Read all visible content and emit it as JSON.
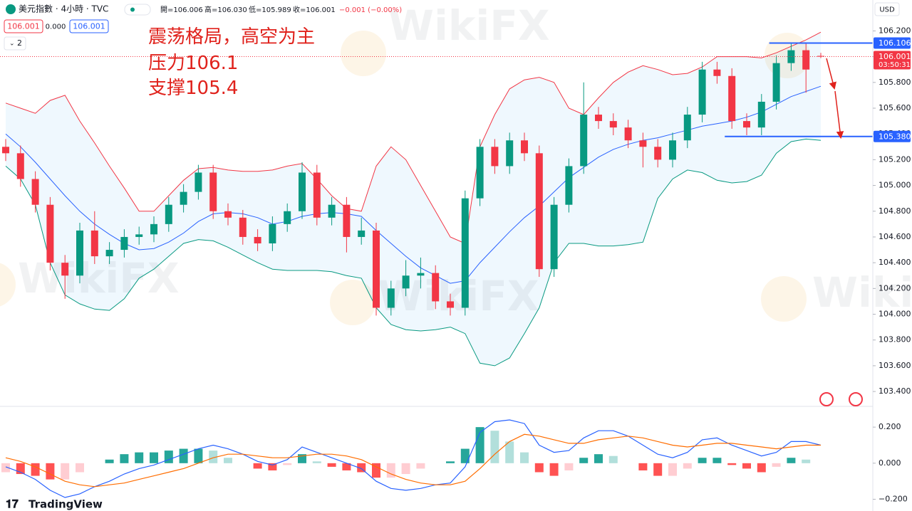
{
  "header": {
    "symbol": "美元指數 · 4小時 · TVC",
    "open": "開=106.006",
    "high": "高=106.030",
    "low": "低=105.989",
    "close": "收=106.001",
    "change": "−0.001 (−0.00%)",
    "sell": "106.001",
    "spread": "0.000",
    "buy": "106.001",
    "indicators": "2",
    "currency": "USD",
    "logo": "TradingView"
  },
  "watermark": "WikiFX",
  "chart_data": [
    {
      "type": "candlestick",
      "annotations": [
        "震荡格局，高空为主",
        "压力106.1",
        "支撑105.4"
      ],
      "up_color": "#089981",
      "down_color": "#f23645",
      "open": [
        105.3,
        105.25,
        105.05,
        104.85,
        104.4,
        104.3,
        104.65,
        104.45,
        104.5,
        104.6,
        104.62,
        104.7,
        104.85,
        104.95,
        105.1,
        104.8,
        104.75,
        104.6,
        104.55,
        104.7,
        104.8,
        105.1,
        104.75,
        104.85,
        104.6,
        104.65,
        104.05,
        104.2,
        104.3,
        104.32,
        104.1,
        104.05,
        104.9,
        105.3,
        105.15,
        105.35,
        105.25,
        104.35,
        104.85,
        105.15,
        105.55,
        105.5,
        105.45,
        105.35,
        105.3,
        105.2,
        105.35,
        105.55,
        105.9,
        105.85,
        105.5,
        105.45,
        105.65,
        105.95,
        106.05,
        106.006
      ],
      "high": [
        105.36,
        105.31,
        105.11,
        104.91,
        104.46,
        104.71,
        104.8,
        104.56,
        104.66,
        104.68,
        104.76,
        104.91,
        105.01,
        105.16,
        105.16,
        104.86,
        104.81,
        104.66,
        104.76,
        104.86,
        105.18,
        105.16,
        104.91,
        104.91,
        104.75,
        104.71,
        104.26,
        104.42,
        104.44,
        104.38,
        104.16,
        104.96,
        105.36,
        105.36,
        105.41,
        105.41,
        105.31,
        104.91,
        105.21,
        105.8,
        105.61,
        105.56,
        105.51,
        105.41,
        105.36,
        105.41,
        105.61,
        105.96,
        105.96,
        105.91,
        105.56,
        105.71,
        106.01,
        106.11,
        106.11,
        106.03
      ],
      "low": [
        105.19,
        104.99,
        104.79,
        104.34,
        104.12,
        104.24,
        104.39,
        104.39,
        104.44,
        104.54,
        104.56,
        104.64,
        104.79,
        104.89,
        104.74,
        104.69,
        104.54,
        104.49,
        104.49,
        104.64,
        104.74,
        104.69,
        104.69,
        104.48,
        104.54,
        103.99,
        103.99,
        104.14,
        104.2,
        104.04,
        103.99,
        103.99,
        104.84,
        105.09,
        105.09,
        105.19,
        104.29,
        104.29,
        104.79,
        105.09,
        105.44,
        105.39,
        105.29,
        105.14,
        105.14,
        105.14,
        105.29,
        105.49,
        105.79,
        105.44,
        105.39,
        105.39,
        105.59,
        105.89,
        105.72,
        105.989
      ],
      "close": [
        105.25,
        105.05,
        104.85,
        104.4,
        104.3,
        104.65,
        104.45,
        104.5,
        104.6,
        104.62,
        104.7,
        104.85,
        104.95,
        105.1,
        104.8,
        104.75,
        104.6,
        104.55,
        104.7,
        104.8,
        105.1,
        104.75,
        104.85,
        104.6,
        104.65,
        104.05,
        104.2,
        104.3,
        104.32,
        104.1,
        104.05,
        104.9,
        105.3,
        105.15,
        105.35,
        105.25,
        104.35,
        104.85,
        105.15,
        105.55,
        105.5,
        105.45,
        105.35,
        105.3,
        105.2,
        105.35,
        105.55,
        105.9,
        105.85,
        105.5,
        105.45,
        105.65,
        105.95,
        106.05,
        105.9,
        106.001
      ],
      "bb_upper": [
        105.64,
        105.6,
        105.56,
        105.66,
        105.7,
        105.5,
        105.33,
        105.15,
        104.98,
        104.8,
        104.8,
        104.92,
        105.04,
        105.13,
        105.14,
        105.12,
        105.11,
        105.11,
        105.12,
        105.15,
        105.17,
        105.05,
        104.92,
        104.82,
        104.8,
        105.15,
        105.3,
        105.2,
        105.0,
        104.8,
        104.6,
        104.55,
        105.3,
        105.55,
        105.75,
        105.82,
        105.84,
        105.8,
        105.6,
        105.55,
        105.68,
        105.8,
        105.88,
        105.93,
        105.9,
        105.86,
        105.87,
        105.92,
        106.0,
        106.0,
        106.0,
        105.99,
        106.03,
        106.08,
        106.13,
        106.19
      ],
      "bb_middle": [
        105.4,
        105.3,
        105.18,
        105.05,
        104.92,
        104.8,
        104.7,
        104.62,
        104.55,
        104.5,
        104.51,
        104.56,
        104.63,
        104.72,
        104.78,
        104.79,
        104.78,
        104.75,
        104.7,
        104.72,
        104.76,
        104.78,
        104.79,
        104.78,
        104.76,
        104.65,
        104.55,
        104.45,
        104.36,
        104.3,
        104.24,
        104.26,
        104.4,
        104.52,
        104.64,
        104.75,
        104.84,
        104.95,
        105.06,
        105.14,
        105.22,
        105.28,
        105.32,
        105.35,
        105.37,
        105.4,
        105.43,
        105.46,
        105.48,
        105.5,
        105.53,
        105.57,
        105.63,
        105.69,
        105.73,
        105.77
      ],
      "bb_lower": [
        105.15,
        105.05,
        104.85,
        104.4,
        104.15,
        104.08,
        104.04,
        104.03,
        104.12,
        104.28,
        104.35,
        104.45,
        104.55,
        104.58,
        104.57,
        104.52,
        104.46,
        104.4,
        104.35,
        104.34,
        104.34,
        104.34,
        104.33,
        104.3,
        104.28,
        104.05,
        103.92,
        103.88,
        103.87,
        103.88,
        103.9,
        103.85,
        103.62,
        103.6,
        103.66,
        103.85,
        104.05,
        104.4,
        104.55,
        104.55,
        104.53,
        104.53,
        104.54,
        104.56,
        104.9,
        105.05,
        105.12,
        105.1,
        105.04,
        105.02,
        105.03,
        105.08,
        105.25,
        105.34,
        105.36,
        105.35
      ],
      "bb_upper_color": "#f23645",
      "bb_middle_color": "#2962ff",
      "bb_lower_color": "#089981",
      "band_fill": "#2196f3",
      "price_lines": [
        {
          "value": 106.106,
          "label": "106.106",
          "color": "#2962ff",
          "from": 52
        },
        {
          "value": 105.38,
          "label": "105.380",
          "color": "#2962ff",
          "from": 49
        }
      ],
      "last_price": 106.001,
      "countdown": "03:50:31",
      "last_color": "#f23645",
      "ylim": [
        103.29,
        106.44
      ],
      "yticks": [
        {
          "value": 103.4,
          "label": "103.400"
        },
        {
          "value": 103.6,
          "label": "103.600"
        },
        {
          "value": 103.8,
          "label": "103.800"
        },
        {
          "value": 104.0,
          "label": "104.000"
        },
        {
          "value": 104.2,
          "label": "104.200"
        },
        {
          "value": 104.4,
          "label": "104.400"
        },
        {
          "value": 104.6,
          "label": "104.600"
        },
        {
          "value": 104.8,
          "label": "104.800"
        },
        {
          "value": 105.0,
          "label": "105.000"
        },
        {
          "value": 105.2,
          "label": "105.200"
        },
        {
          "value": 105.4,
          "label": "105.400"
        },
        {
          "value": 105.6,
          "label": "105.600"
        },
        {
          "value": 105.8,
          "label": "105.800"
        },
        {
          "value": 106.0,
          "label": "106.000"
        },
        {
          "value": 106.2,
          "label": "106.200"
        }
      ],
      "grid": false
    },
    {
      "type": "macd",
      "macd": [
        -0.02,
        -0.05,
        -0.09,
        -0.15,
        -0.19,
        -0.17,
        -0.13,
        -0.1,
        -0.06,
        -0.03,
        -0.01,
        0.02,
        0.05,
        0.08,
        0.1,
        0.08,
        0.05,
        0.01,
        -0.01,
        0.02,
        0.09,
        0.06,
        0.03,
        0.0,
        -0.03,
        -0.1,
        -0.14,
        -0.15,
        -0.14,
        -0.12,
        -0.11,
        -0.02,
        0.17,
        0.23,
        0.24,
        0.22,
        0.1,
        0.06,
        0.07,
        0.14,
        0.18,
        0.18,
        0.15,
        0.1,
        0.05,
        0.03,
        0.06,
        0.13,
        0.14,
        0.1,
        0.07,
        0.04,
        0.06,
        0.12,
        0.12,
        0.1
      ],
      "signal": [
        0.03,
        0.01,
        -0.02,
        -0.06,
        -0.1,
        -0.12,
        -0.13,
        -0.12,
        -0.11,
        -0.09,
        -0.07,
        -0.05,
        -0.03,
        0.0,
        0.03,
        0.05,
        0.05,
        0.04,
        0.03,
        0.03,
        0.04,
        0.05,
        0.05,
        0.04,
        0.02,
        -0.02,
        -0.06,
        -0.09,
        -0.11,
        -0.12,
        -0.12,
        -0.1,
        -0.03,
        0.05,
        0.12,
        0.16,
        0.15,
        0.13,
        0.11,
        0.11,
        0.13,
        0.14,
        0.15,
        0.14,
        0.12,
        0.1,
        0.09,
        0.1,
        0.11,
        0.11,
        0.1,
        0.09,
        0.08,
        0.09,
        0.1,
        0.1
      ],
      "histogram": [
        -0.05,
        -0.06,
        -0.07,
        -0.09,
        -0.09,
        -0.05,
        0.0,
        0.02,
        0.05,
        0.06,
        0.06,
        0.07,
        0.08,
        0.08,
        0.07,
        0.03,
        0.0,
        -0.03,
        -0.04,
        -0.01,
        0.05,
        0.01,
        -0.02,
        -0.04,
        -0.05,
        -0.08,
        -0.08,
        -0.06,
        -0.03,
        0.0,
        0.01,
        0.08,
        0.2,
        0.18,
        0.12,
        0.06,
        -0.05,
        -0.07,
        -0.04,
        0.03,
        0.05,
        0.04,
        0.0,
        -0.04,
        -0.07,
        -0.07,
        -0.03,
        0.03,
        0.03,
        -0.01,
        -0.03,
        -0.05,
        -0.02,
        0.03,
        0.02,
        0.0
      ],
      "macd_color": "#2962ff",
      "signal_color": "#ff6d00",
      "hist_colors": [
        "#26a69a",
        "#b2dfdb",
        "#ff5252",
        "#ffcdd2"
      ],
      "ylim": [
        -0.265,
        0.311
      ],
      "yticks": [
        {
          "value": 0.2,
          "label": "0.200"
        },
        {
          "value": 0,
          "label": "0.000"
        },
        {
          "value": -0.2,
          "label": "−0.200"
        }
      ]
    }
  ]
}
